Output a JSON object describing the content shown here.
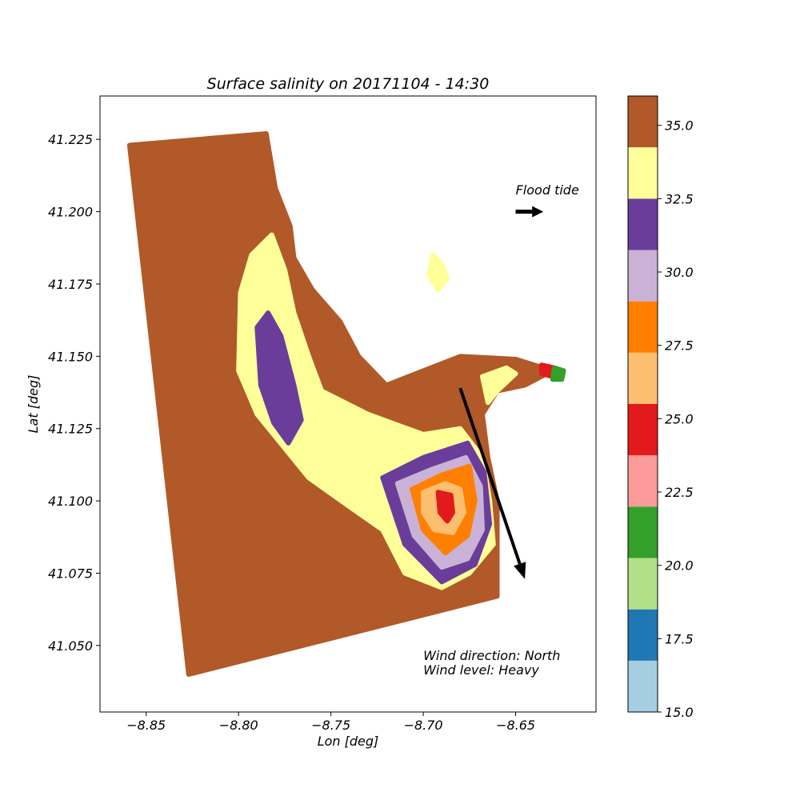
{
  "chart_data": {
    "type": "heatmap",
    "title": "Surface salinity on 20171104 - 14:30",
    "xlabel": "Lon [deg]",
    "ylabel": "Lat [deg]",
    "xlim": [
      -8.875,
      -8.6065
    ],
    "ylim": [
      41.027,
      41.24
    ],
    "xticks": [
      -8.85,
      -8.8,
      -8.75,
      -8.7,
      -8.65
    ],
    "xtick_labels": [
      "−8.85",
      "−8.80",
      "−8.75",
      "−8.70",
      "−8.65"
    ],
    "yticks": [
      41.05,
      41.075,
      41.1,
      41.125,
      41.15,
      41.175,
      41.2,
      41.225
    ],
    "ytick_labels": [
      "41.050",
      "41.075",
      "41.100",
      "41.125",
      "41.150",
      "41.175",
      "41.200",
      "41.225"
    ],
    "grid": false,
    "colorbar": {
      "range": [
        15.0,
        36.0
      ],
      "levels": [
        {
          "from": 15.0,
          "to": 16.75,
          "color": "#a6cee3"
        },
        {
          "from": 16.75,
          "to": 18.5,
          "color": "#1f78b4"
        },
        {
          "from": 18.5,
          "to": 20.25,
          "color": "#b2df8a"
        },
        {
          "from": 20.25,
          "to": 22.0,
          "color": "#33a02c"
        },
        {
          "from": 22.0,
          "to": 23.75,
          "color": "#fb9a99"
        },
        {
          "from": 23.75,
          "to": 25.5,
          "color": "#e31a1c"
        },
        {
          "from": 25.5,
          "to": 27.25,
          "color": "#fdbf6f"
        },
        {
          "from": 27.25,
          "to": 29.0,
          "color": "#ff7f00"
        },
        {
          "from": 29.0,
          "to": 30.75,
          "color": "#cab2d6"
        },
        {
          "from": 30.75,
          "to": 32.5,
          "color": "#6a3d9a"
        },
        {
          "from": 32.5,
          "to": 34.25,
          "color": "#ffff99"
        },
        {
          "from": 34.25,
          "to": 36.0,
          "color": "#b15928"
        }
      ],
      "ticks": [
        15.0,
        17.5,
        20.0,
        22.5,
        25.0,
        27.5,
        30.0,
        32.5,
        35.0
      ],
      "tick_labels": [
        "15.0",
        "17.5",
        "20.0",
        "22.5",
        "25.0",
        "27.5",
        "30.0",
        "32.5",
        "35.0"
      ]
    },
    "regions": [
      {
        "name": "domain",
        "salinity_class": 35.0,
        "color": "#b15928",
        "polygon": [
          [
            -8.859,
            41.223
          ],
          [
            -8.785,
            41.227
          ],
          [
            -8.78,
            41.208
          ],
          [
            -8.772,
            41.195
          ],
          [
            -8.77,
            41.184
          ],
          [
            -8.76,
            41.173
          ],
          [
            -8.745,
            41.162
          ],
          [
            -8.735,
            41.15
          ],
          [
            -8.72,
            41.14
          ],
          [
            -8.7,
            41.145
          ],
          [
            -8.68,
            41.15
          ],
          [
            -8.65,
            41.149
          ],
          [
            -8.63,
            41.145
          ],
          [
            -8.645,
            41.14
          ],
          [
            -8.66,
            41.138
          ],
          [
            -8.668,
            41.13
          ],
          [
            -8.665,
            41.115
          ],
          [
            -8.66,
            41.1
          ],
          [
            -8.66,
            41.08
          ],
          [
            -8.66,
            41.067
          ],
          [
            -8.827,
            41.04
          ]
        ]
      },
      {
        "name": "plume-outer",
        "salinity_class": 33.0,
        "color": "#ffff99",
        "polygon": [
          [
            -8.799,
            41.172
          ],
          [
            -8.793,
            41.185
          ],
          [
            -8.782,
            41.192
          ],
          [
            -8.775,
            41.18
          ],
          [
            -8.77,
            41.165
          ],
          [
            -8.762,
            41.15
          ],
          [
            -8.755,
            41.138
          ],
          [
            -8.73,
            41.13
          ],
          [
            -8.7,
            41.123
          ],
          [
            -8.68,
            41.125
          ],
          [
            -8.668,
            41.115
          ],
          [
            -8.664,
            41.1
          ],
          [
            -8.662,
            41.085
          ],
          [
            -8.675,
            41.075
          ],
          [
            -8.69,
            41.07
          ],
          [
            -8.71,
            41.075
          ],
          [
            -8.722,
            41.09
          ],
          [
            -8.74,
            41.098
          ],
          [
            -8.762,
            41.108
          ],
          [
            -8.79,
            41.13
          ],
          [
            -8.8,
            41.145
          ]
        ]
      },
      {
        "name": "plume-north-core",
        "salinity_class": 31.5,
        "color": "#6a3d9a",
        "polygon": [
          [
            -8.79,
            41.16
          ],
          [
            -8.784,
            41.165
          ],
          [
            -8.777,
            41.157
          ],
          [
            -8.77,
            41.14
          ],
          [
            -8.766,
            41.128
          ],
          [
            -8.773,
            41.12
          ],
          [
            -8.781,
            41.127
          ],
          [
            -8.788,
            41.14
          ]
        ]
      },
      {
        "name": "plume-south-ring",
        "salinity_class": 31.5,
        "color": "#6a3d9a",
        "polygon": [
          [
            -8.722,
            41.108
          ],
          [
            -8.7,
            41.115
          ],
          [
            -8.676,
            41.12
          ],
          [
            -8.667,
            41.11
          ],
          [
            -8.664,
            41.092
          ],
          [
            -8.672,
            41.078
          ],
          [
            -8.69,
            41.072
          ],
          [
            -8.71,
            41.085
          ]
        ]
      },
      {
        "name": "plume-south-lavender",
        "salinity_class": 30.0,
        "color": "#cab2d6",
        "polygon": [
          [
            -8.714,
            41.106
          ],
          [
            -8.695,
            41.111
          ],
          [
            -8.677,
            41.115
          ],
          [
            -8.669,
            41.105
          ],
          [
            -8.668,
            41.09
          ],
          [
            -8.676,
            41.08
          ],
          [
            -8.69,
            41.077
          ],
          [
            -8.705,
            41.088
          ]
        ]
      },
      {
        "name": "plume-south-orange",
        "salinity_class": 28.0,
        "color": "#ff7f00",
        "polygon": [
          [
            -8.706,
            41.104
          ],
          [
            -8.69,
            41.109
          ],
          [
            -8.675,
            41.112
          ],
          [
            -8.672,
            41.1
          ],
          [
            -8.676,
            41.088
          ],
          [
            -8.688,
            41.082
          ],
          [
            -8.7,
            41.09
          ]
        ]
      },
      {
        "name": "plume-south-peach",
        "salinity_class": 26.5,
        "color": "#fdbf6f",
        "polygon": [
          [
            -8.7,
            41.103
          ],
          [
            -8.688,
            41.106
          ],
          [
            -8.68,
            41.104
          ],
          [
            -8.678,
            41.096
          ],
          [
            -8.684,
            41.089
          ],
          [
            -8.694,
            41.09
          ],
          [
            -8.7,
            41.096
          ]
        ]
      },
      {
        "name": "plume-south-core",
        "salinity_class": 24.5,
        "color": "#e31a1c",
        "polygon": [
          [
            -8.692,
            41.103
          ],
          [
            -8.685,
            41.102
          ],
          [
            -8.684,
            41.096
          ],
          [
            -8.687,
            41.093
          ],
          [
            -8.691,
            41.096
          ]
        ]
      },
      {
        "name": "river-channel",
        "salinity_class": 33.0,
        "color": "#ffff99",
        "polygon": [
          [
            -8.668,
            41.143
          ],
          [
            -8.655,
            41.146
          ],
          [
            -8.65,
            41.144
          ],
          [
            -8.66,
            41.138
          ],
          [
            -8.665,
            41.134
          ]
        ]
      },
      {
        "name": "river-upstream-red",
        "salinity_class": 24.5,
        "color": "#e31a1c",
        "polygon": [
          [
            -8.636,
            41.147
          ],
          [
            -8.629,
            41.146
          ],
          [
            -8.63,
            41.143
          ],
          [
            -8.636,
            41.144
          ]
        ]
      },
      {
        "name": "river-upstream-green",
        "salinity_class": 21.0,
        "color": "#33a02c",
        "polygon": [
          [
            -8.629,
            41.146
          ],
          [
            -8.624,
            41.145
          ],
          [
            -8.625,
            41.142
          ],
          [
            -8.63,
            41.142
          ]
        ]
      },
      {
        "name": "coast-fringe",
        "salinity_class": 33.0,
        "color": "#ffff99",
        "polygon": [
          [
            -8.695,
            41.185
          ],
          [
            -8.69,
            41.182
          ],
          [
            -8.687,
            41.177
          ],
          [
            -8.692,
            41.173
          ],
          [
            -8.697,
            41.178
          ]
        ]
      }
    ],
    "annotations": [
      {
        "text": "Flood tide",
        "x": -8.65,
        "y": 41.206
      },
      {
        "text": "Wind direction: North",
        "x": -8.7,
        "y": 41.045
      },
      {
        "text": "Wind level: Heavy",
        "x": -8.7,
        "y": 41.04
      }
    ],
    "arrows": [
      {
        "name": "flood-tide-arrow",
        "x0": -8.65,
        "y0": 41.2,
        "x1": -8.635,
        "y1": 41.2
      },
      {
        "name": "wind-arrow",
        "x0": -8.68,
        "y0": 41.139,
        "x1": -8.645,
        "y1": 41.073
      }
    ]
  }
}
